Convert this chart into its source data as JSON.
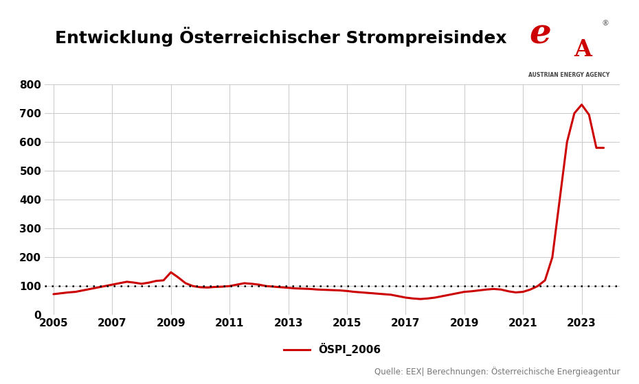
{
  "title": "Entwicklung Österreichischer Strompreisindex",
  "source_text": "Quelle: EEX| Berechnungen: Österreichische Energieagentur",
  "legend_label": "ÖSPI_2006",
  "line_color": "#cc0000",
  "line_width": 2.2,
  "dotted_line_y": 100,
  "dotted_line_color": "#000000",
  "ylim": [
    0,
    800
  ],
  "yticks": [
    0,
    100,
    200,
    300,
    400,
    500,
    600,
    700,
    800
  ],
  "xlim_start": 2004.7,
  "xlim_end": 2024.3,
  "xticks": [
    2005,
    2007,
    2009,
    2011,
    2013,
    2015,
    2017,
    2019,
    2021,
    2023
  ],
  "background_color": "#ffffff",
  "grid_color": "#cccccc",
  "title_fontsize": 18,
  "tick_fontsize": 11,
  "years": [
    2005.0,
    2005.25,
    2005.5,
    2005.75,
    2006.0,
    2006.25,
    2006.5,
    2006.75,
    2007.0,
    2007.25,
    2007.5,
    2007.75,
    2008.0,
    2008.25,
    2008.5,
    2008.75,
    2009.0,
    2009.25,
    2009.5,
    2009.75,
    2010.0,
    2010.25,
    2010.5,
    2010.75,
    2011.0,
    2011.25,
    2011.5,
    2011.75,
    2012.0,
    2012.25,
    2012.5,
    2012.75,
    2013.0,
    2013.25,
    2013.5,
    2013.75,
    2014.0,
    2014.25,
    2014.5,
    2014.75,
    2015.0,
    2015.25,
    2015.5,
    2015.75,
    2016.0,
    2016.25,
    2016.5,
    2016.75,
    2017.0,
    2017.25,
    2017.5,
    2017.75,
    2018.0,
    2018.25,
    2018.5,
    2018.75,
    2019.0,
    2019.25,
    2019.5,
    2019.75,
    2020.0,
    2020.25,
    2020.5,
    2020.75,
    2021.0,
    2021.25,
    2021.5,
    2021.75,
    2022.0,
    2022.25,
    2022.5,
    2022.75,
    2023.0,
    2023.25,
    2023.5,
    2023.75
  ],
  "values": [
    72,
    75,
    78,
    80,
    85,
    90,
    95,
    100,
    105,
    110,
    115,
    112,
    108,
    112,
    118,
    120,
    148,
    130,
    110,
    100,
    96,
    95,
    97,
    98,
    100,
    105,
    110,
    108,
    105,
    100,
    98,
    96,
    94,
    92,
    91,
    90,
    88,
    87,
    86,
    85,
    83,
    80,
    78,
    76,
    74,
    72,
    70,
    65,
    60,
    57,
    55,
    57,
    60,
    65,
    70,
    75,
    80,
    82,
    85,
    88,
    90,
    88,
    82,
    78,
    80,
    88,
    100,
    120,
    200,
    400,
    600,
    700,
    730,
    695,
    580,
    580
  ]
}
